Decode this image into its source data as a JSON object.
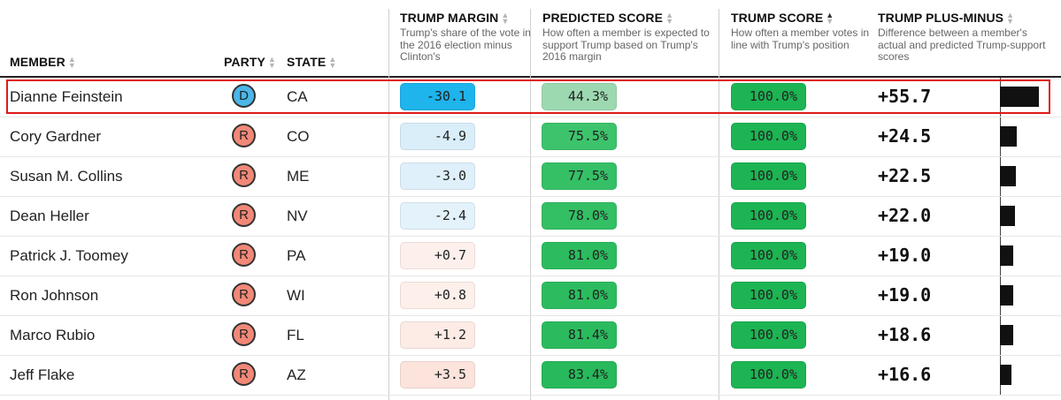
{
  "header": {
    "member": {
      "label": "MEMBER"
    },
    "party": {
      "label": "PARTY"
    },
    "state": {
      "label": "STATE"
    },
    "trump_margin": {
      "label": "TRUMP MARGIN",
      "desc": "Trump's share of the vote in the 2016 election minus Clinton's"
    },
    "predicted_score": {
      "label": "PREDICTED SCORE",
      "desc": "How often a member is expected to support Trump based on Trump's 2016 margin"
    },
    "trump_score": {
      "label": "TRUMP SCORE",
      "desc": "How often a member votes in line with Trump's position"
    },
    "plus_minus": {
      "label": "TRUMP PLUS-MINUS",
      "desc": "Difference between a member's actual and predicted Trump-support scores"
    }
  },
  "colors": {
    "democrat": "#4bb6e8",
    "republican": "#f28877",
    "highlight_border": "#e01a1a"
  },
  "rows": [
    {
      "member": "Dianne Feinstein",
      "party": "D",
      "state": "CA",
      "margin": "-30.1",
      "predicted": "44.3%",
      "trump_score": "100.0%",
      "plus_minus": "+55.7",
      "pm_value": 55.7,
      "margin_color": "#1eb4ec",
      "pred_color": "#9cd9b0",
      "score_color": "#1db453"
    },
    {
      "member": "Cory Gardner",
      "party": "R",
      "state": "CO",
      "margin": "-4.9",
      "predicted": "75.5%",
      "trump_score": "100.0%",
      "plus_minus": "+24.5",
      "pm_value": 24.5,
      "margin_color": "#d9eef9",
      "pred_color": "#3dc36c",
      "score_color": "#1db453"
    },
    {
      "member": "Susan M. Collins",
      "party": "R",
      "state": "ME",
      "margin": "-3.0",
      "predicted": "77.5%",
      "trump_score": "100.0%",
      "plus_minus": "+22.5",
      "pm_value": 22.5,
      "margin_color": "#dff0fa",
      "pred_color": "#35c066",
      "score_color": "#1db453"
    },
    {
      "member": "Dean Heller",
      "party": "R",
      "state": "NV",
      "margin": "-2.4",
      "predicted": "78.0%",
      "trump_score": "100.0%",
      "plus_minus": "+22.0",
      "pm_value": 22.0,
      "margin_color": "#e3f2fb",
      "pred_color": "#33bf64",
      "score_color": "#1db453"
    },
    {
      "member": "Patrick J. Toomey",
      "party": "R",
      "state": "PA",
      "margin": "+0.7",
      "predicted": "81.0%",
      "trump_score": "100.0%",
      "plus_minus": "+19.0",
      "pm_value": 19.0,
      "margin_color": "#fdf0ec",
      "pred_color": "#2cbc5f",
      "score_color": "#1db453"
    },
    {
      "member": "Ron Johnson",
      "party": "R",
      "state": "WI",
      "margin": "+0.8",
      "predicted": "81.0%",
      "trump_score": "100.0%",
      "plus_minus": "+19.0",
      "pm_value": 19.0,
      "margin_color": "#fdefea",
      "pred_color": "#2cbc5f",
      "score_color": "#1db453"
    },
    {
      "member": "Marco Rubio",
      "party": "R",
      "state": "FL",
      "margin": "+1.2",
      "predicted": "81.4%",
      "trump_score": "100.0%",
      "plus_minus": "+18.6",
      "pm_value": 18.6,
      "margin_color": "#fdebe5",
      "pred_color": "#2bbb5e",
      "score_color": "#1db453"
    },
    {
      "member": "Jeff Flake",
      "party": "R",
      "state": "AZ",
      "margin": "+3.5",
      "predicted": "83.4%",
      "trump_score": "100.0%",
      "plus_minus": "+16.6",
      "pm_value": 16.6,
      "margin_color": "#fce3dc",
      "pred_color": "#27b95b",
      "score_color": "#1db453"
    }
  ],
  "plus_minus_scale_max": 57
}
